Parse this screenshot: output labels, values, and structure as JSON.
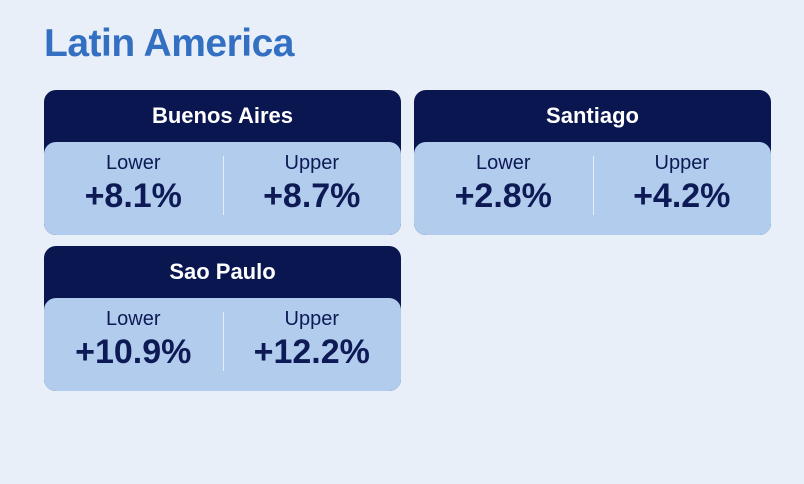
{
  "header": {
    "title": "Latin America"
  },
  "cards": [
    {
      "city": "Buenos Aires",
      "lower_label": "Lower",
      "lower": "+8.1%",
      "upper_label": "Upper",
      "upper": "+8.7%"
    },
    {
      "city": "Santiago",
      "lower_label": "Lower",
      "lower": "+2.8%",
      "upper_label": "Upper",
      "upper": "+4.2%"
    },
    {
      "city": "Sao Paulo",
      "lower_label": "Lower",
      "lower": "+10.9%",
      "upper_label": "Upper",
      "upper": "+12.2%"
    }
  ]
}
